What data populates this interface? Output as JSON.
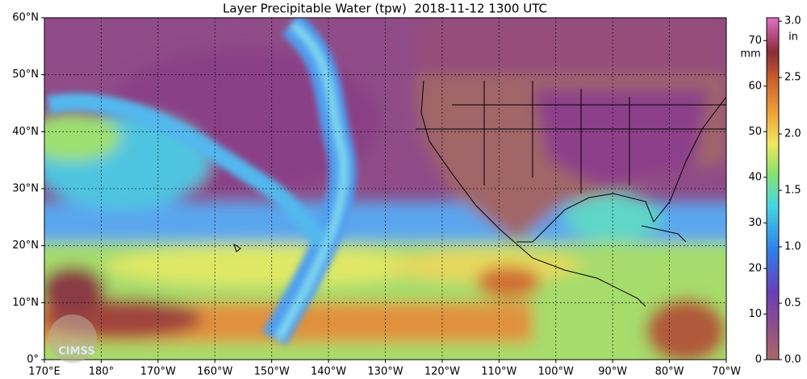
{
  "map": {
    "title": "Layer Precipitable Water (tpw)  2018-11-12 1300 UTC",
    "xlim": [
      170,
      290
    ],
    "ylim": [
      0,
      60
    ],
    "xticks": [
      {
        "value": 170,
        "label": "170°E"
      },
      {
        "value": 180,
        "label": "180°"
      },
      {
        "value": 190,
        "label": "170°W"
      },
      {
        "value": 200,
        "label": "160°W"
      },
      {
        "value": 210,
        "label": "150°W"
      },
      {
        "value": 220,
        "label": "140°W"
      },
      {
        "value": 230,
        "label": "130°W"
      },
      {
        "value": 240,
        "label": "120°W"
      },
      {
        "value": 250,
        "label": "110°W"
      },
      {
        "value": 260,
        "label": "100°W"
      },
      {
        "value": 270,
        "label": "90°W"
      },
      {
        "value": 280,
        "label": "80°W"
      },
      {
        "value": 290,
        "label": "70°W"
      }
    ],
    "yticks": [
      {
        "value": 0,
        "label": "0°"
      },
      {
        "value": 10,
        "label": "10°N"
      },
      {
        "value": 20,
        "label": "20°N"
      },
      {
        "value": 30,
        "label": "30°N"
      },
      {
        "value": 40,
        "label": "40°N"
      },
      {
        "value": 50,
        "label": "50°N"
      },
      {
        "value": 60,
        "label": "60°N"
      }
    ],
    "grid": true,
    "logo": "CIMSS",
    "colorbar": {
      "mm_label": "mm",
      "mm_lim": [
        0,
        75
      ],
      "mm_ticks": [
        0,
        10,
        20,
        30,
        40,
        50,
        60,
        70
      ],
      "in_label": "in",
      "in_lim": [
        0,
        3.03
      ],
      "in_ticks": [
        {
          "value": 0,
          "label": "0.0"
        },
        {
          "value": 0.5,
          "label": "0.5"
        },
        {
          "value": 1,
          "label": "1.0"
        },
        {
          "value": 1.5,
          "label": "1.5"
        },
        {
          "value": 2,
          "label": "2.0"
        },
        {
          "value": 2.5,
          "label": "2.5"
        },
        {
          "value": 3,
          "label": "3.0"
        }
      ]
    }
  }
}
